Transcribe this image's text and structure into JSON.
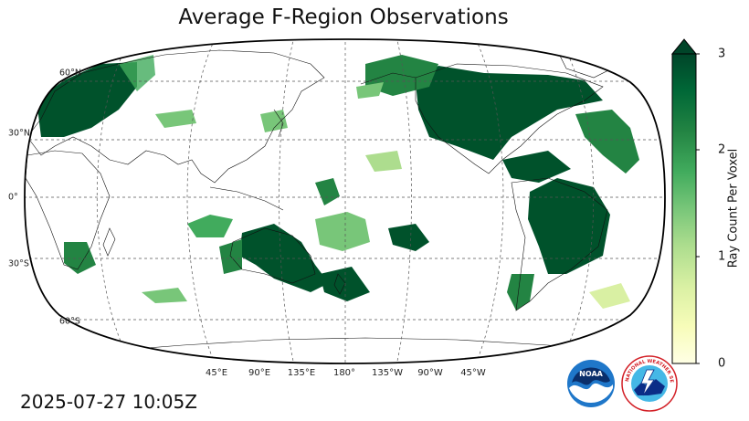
{
  "title": "Average F-Region Observations",
  "timestamp": "2025-07-27 10:05Z",
  "longitude_labels": [
    "45°E",
    "90°E",
    "135°E",
    "180°",
    "135°W",
    "90°W",
    "45°W"
  ],
  "latitude_labels": [
    "60°N",
    "30°N",
    "0°",
    "30°S",
    "60°S"
  ],
  "colorbar": {
    "label": "Ray Count Per Voxel",
    "ticks": [
      "0",
      "1",
      "2",
      "3"
    ],
    "min": 0,
    "max": 3,
    "extend": "max",
    "colormap": "YlGn",
    "colors": [
      "#ffffe5",
      "#f7fcb9",
      "#d9f0a3",
      "#addd8e",
      "#78c679",
      "#41ab5d",
      "#238443",
      "#006837",
      "#004529"
    ]
  },
  "map": {
    "projection": "Robinson",
    "central_longitude": 180,
    "gridlines": "dashed",
    "coastlines": true,
    "borders": true
  },
  "logos": {
    "noaa_text": "NOAA",
    "nws_text": "NATIONAL WEATHER SERVICE"
  }
}
